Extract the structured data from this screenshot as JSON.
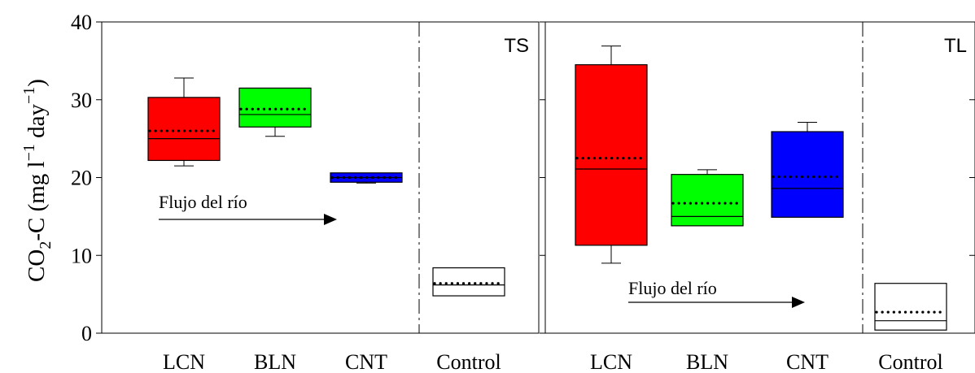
{
  "ylabel": "CO₂-C (mg l⁻¹ day⁻¹)",
  "ylabel_parts": {
    "a": "CO",
    "sub": "2",
    "b": "-C (mg l",
    "sup1": "−1",
    "c": " day",
    "sup2": "−1",
    "d": ")"
  },
  "chart_data": [
    {
      "type": "box",
      "panel_label": "TS",
      "categories": [
        "LCN",
        "BLN",
        "CNT",
        "Control"
      ],
      "ylim": [
        0,
        40
      ],
      "yticks": [
        0,
        10,
        20,
        30,
        40
      ],
      "separator_after": "CNT",
      "annotation": {
        "text": "Flujo del río"
      },
      "boxes": [
        {
          "category": "LCN",
          "color": "#ff0000",
          "whisker_low": 21.5,
          "q1": 22.2,
          "median": 25.0,
          "mean": 26.0,
          "q3": 30.3,
          "whisker_high": 32.8
        },
        {
          "category": "BLN",
          "color": "#00ff00",
          "whisker_low": 25.3,
          "q1": 26.5,
          "median": 28.1,
          "mean": 28.8,
          "q3": 31.5,
          "whisker_high": 31.5
        },
        {
          "category": "CNT",
          "color": "#0000ff",
          "whisker_low": 19.3,
          "q1": 19.4,
          "median": 20.0,
          "mean": 20.0,
          "q3": 20.6,
          "whisker_high": 20.6
        },
        {
          "category": "Control",
          "color": "#ffffff",
          "whisker_low": 4.8,
          "q1": 4.8,
          "median": 6.2,
          "mean": 6.4,
          "q3": 8.4,
          "whisker_high": 8.4
        }
      ]
    },
    {
      "type": "box",
      "panel_label": "TL",
      "categories": [
        "LCN",
        "BLN",
        "CNT",
        "Control"
      ],
      "ylim": [
        0,
        40
      ],
      "yticks": [
        0,
        10,
        20,
        30,
        40
      ],
      "separator_after": "CNT",
      "annotation": {
        "text": "Flujo del río"
      },
      "boxes": [
        {
          "category": "LCN",
          "color": "#ff0000",
          "whisker_low": 9.0,
          "q1": 11.3,
          "median": 21.1,
          "mean": 22.5,
          "q3": 34.5,
          "whisker_high": 36.9
        },
        {
          "category": "BLN",
          "color": "#00ff00",
          "whisker_low": 13.8,
          "q1": 13.8,
          "median": 15.0,
          "mean": 16.7,
          "q3": 20.4,
          "whisker_high": 21.0
        },
        {
          "category": "CNT",
          "color": "#0000ff",
          "whisker_low": 14.9,
          "q1": 14.9,
          "median": 18.6,
          "mean": 20.1,
          "q3": 25.9,
          "whisker_high": 27.1
        },
        {
          "category": "Control",
          "color": "#ffffff",
          "whisker_low": 0.4,
          "q1": 0.4,
          "median": 1.6,
          "mean": 2.7,
          "q3": 6.4,
          "whisker_high": 6.4
        }
      ]
    }
  ]
}
